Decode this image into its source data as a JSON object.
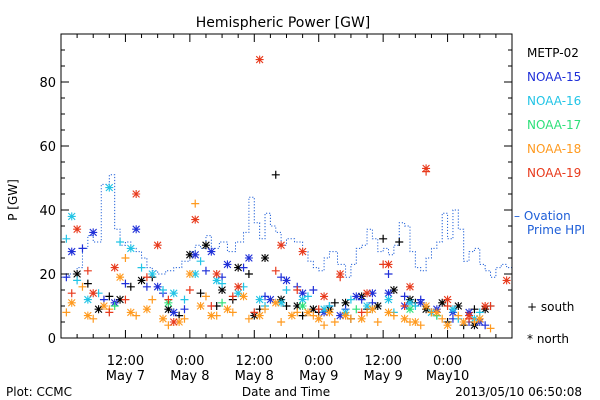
{
  "chart_data": {
    "type": "scatter",
    "title": "Hemispheric Power [GW]",
    "ylabel": "P [GW]",
    "xlabel": "Date and Time",
    "ylim": [
      0,
      95
    ],
    "yticks": [
      0,
      20,
      40,
      60,
      80
    ],
    "xlim": [
      0,
      84
    ],
    "xticks": [
      {
        "x": 12,
        "top": "12:00",
        "bottom": "May 7"
      },
      {
        "x": 24,
        "top": "0:00",
        "bottom": "May 8"
      },
      {
        "x": 36,
        "top": "12:00",
        "bottom": "May 8"
      },
      {
        "x": 48,
        "top": "0:00",
        "bottom": "May 9"
      },
      {
        "x": 60,
        "top": "12:00",
        "bottom": "May 9"
      },
      {
        "x": 72,
        "top": "0:00",
        "bottom": "May10"
      }
    ],
    "legend": {
      "satellites": [
        {
          "name": "METP-02",
          "color": "#000000"
        },
        {
          "name": "NOAA-15",
          "color": "#1f2fd8"
        },
        {
          "name": "NOAA-16",
          "color": "#22c4e6"
        },
        {
          "name": "NOAA-17",
          "color": "#2ee07a"
        },
        {
          "name": "NOAA-18",
          "color": "#ff9a1f"
        },
        {
          "name": "NOAA-19",
          "color": "#e83a1c"
        }
      ],
      "ovation_label_1": "– Ovation",
      "ovation_label_2": "Prime HPI",
      "south_label": "+ south",
      "north_label": "* north"
    },
    "ovation": {
      "color": "#1f5fd8",
      "x": [
        0,
        1.5,
        3,
        4,
        5,
        6,
        7.5,
        9,
        10,
        11,
        12,
        13,
        14,
        15,
        16,
        17,
        18,
        19.5,
        21,
        22.5,
        24,
        25,
        26,
        27,
        28,
        29.5,
        31,
        32.5,
        34,
        35,
        36,
        37,
        38,
        39,
        40,
        41,
        42,
        43.5,
        45,
        46,
        47,
        48,
        49,
        50,
        51.5,
        53,
        54,
        55,
        56,
        57,
        58,
        59,
        60,
        61,
        62,
        63,
        64,
        65,
        66,
        67,
        68,
        69,
        70,
        71,
        72,
        73,
        74,
        75,
        76,
        77,
        78,
        79,
        80,
        81,
        82,
        83,
        84
      ],
      "y": [
        19,
        20,
        22,
        28,
        32,
        30,
        48,
        51,
        34,
        29,
        30,
        28,
        27,
        25,
        22,
        21,
        20,
        21,
        22,
        24,
        27,
        29,
        28,
        32,
        28,
        30,
        27,
        30,
        33,
        44,
        36,
        31,
        39,
        35,
        33,
        29,
        31,
        30,
        27,
        24,
        22,
        21,
        25,
        27,
        23,
        19,
        23,
        28,
        29,
        34,
        31,
        27,
        28,
        26,
        29,
        36,
        35,
        27,
        22,
        21,
        25,
        28,
        30,
        39,
        31,
        40,
        34,
        24,
        27,
        28,
        23,
        21,
        19,
        22,
        23,
        22,
        30
      ]
    },
    "series": [
      {
        "name": "METP-02",
        "color": "#000000",
        "south": [
          [
            5,
            17
          ],
          [
            9,
            13
          ],
          [
            13,
            16
          ],
          [
            17,
            19
          ],
          [
            22,
            7
          ],
          [
            26,
            14
          ],
          [
            29,
            10
          ],
          [
            32,
            12
          ],
          [
            35,
            20
          ],
          [
            37,
            9
          ],
          [
            40,
            51
          ],
          [
            42,
            10
          ],
          [
            45,
            7
          ],
          [
            48,
            8
          ],
          [
            51,
            11
          ],
          [
            54,
            6
          ],
          [
            57,
            9
          ],
          [
            60,
            31
          ],
          [
            63,
            30
          ],
          [
            66,
            11
          ],
          [
            69,
            8
          ],
          [
            72,
            5
          ],
          [
            75,
            4
          ],
          [
            77,
            9
          ]
        ],
        "north": [
          [
            3,
            20
          ],
          [
            7,
            9
          ],
          [
            11,
            12
          ],
          [
            15,
            18
          ],
          [
            20,
            9
          ],
          [
            24,
            26
          ],
          [
            27,
            29
          ],
          [
            30,
            15
          ],
          [
            33,
            22
          ],
          [
            36,
            7
          ],
          [
            38,
            25
          ],
          [
            41,
            12
          ],
          [
            44,
            10
          ],
          [
            47,
            9
          ],
          [
            50,
            9
          ],
          [
            53,
            11
          ],
          [
            56,
            13
          ],
          [
            59,
            10
          ],
          [
            62,
            15
          ],
          [
            65,
            12
          ],
          [
            68,
            9
          ],
          [
            71,
            11
          ],
          [
            74,
            10
          ],
          [
            77,
            4
          ],
          [
            79,
            9
          ]
        ]
      },
      {
        "name": "NOAA-15",
        "color": "#1f2fd8",
        "south": [
          [
            1,
            19
          ],
          [
            4,
            28
          ],
          [
            8,
            12
          ],
          [
            12,
            17
          ],
          [
            16,
            16
          ],
          [
            19,
            14
          ],
          [
            23,
            9
          ],
          [
            27,
            21
          ],
          [
            30,
            19
          ],
          [
            34,
            22
          ],
          [
            38,
            13
          ],
          [
            41,
            19
          ],
          [
            44,
            16
          ],
          [
            47,
            15
          ],
          [
            50,
            10
          ],
          [
            53,
            9
          ],
          [
            56,
            12
          ],
          [
            58,
            11
          ],
          [
            61,
            20
          ],
          [
            64,
            13
          ],
          [
            67,
            12
          ],
          [
            70,
            8
          ],
          [
            73,
            6
          ],
          [
            76,
            5
          ],
          [
            79,
            4
          ]
        ],
        "north": [
          [
            2,
            27
          ],
          [
            6,
            33
          ],
          [
            10,
            11
          ],
          [
            14,
            34
          ],
          [
            18,
            16
          ],
          [
            21,
            8
          ],
          [
            25,
            26
          ],
          [
            28,
            27
          ],
          [
            31,
            23
          ],
          [
            35,
            25
          ],
          [
            39,
            12
          ],
          [
            42,
            18
          ],
          [
            45,
            14
          ],
          [
            49,
            8
          ],
          [
            52,
            7
          ],
          [
            55,
            13
          ],
          [
            58,
            14
          ],
          [
            61,
            14
          ],
          [
            64,
            10
          ],
          [
            67,
            11
          ],
          [
            70,
            9
          ],
          [
            73,
            8
          ],
          [
            76,
            8
          ],
          [
            78,
            5
          ]
        ]
      },
      {
        "name": "NOAA-16",
        "color": "#22c4e6",
        "south": [
          [
            1,
            31
          ],
          [
            3,
            18
          ],
          [
            7,
            14
          ],
          [
            11,
            30
          ],
          [
            15,
            22
          ],
          [
            19,
            15
          ],
          [
            23,
            12
          ],
          [
            26,
            24
          ],
          [
            30,
            17
          ],
          [
            34,
            16
          ],
          [
            38,
            10
          ],
          [
            42,
            15
          ],
          [
            46,
            13
          ],
          [
            50,
            10
          ],
          [
            54,
            12
          ],
          [
            58,
            9
          ],
          [
            62,
            8
          ],
          [
            66,
            10
          ],
          [
            70,
            7
          ],
          [
            74,
            6
          ],
          [
            78,
            8
          ],
          [
            80,
            10
          ]
        ],
        "north": [
          [
            2,
            38
          ],
          [
            5,
            12
          ],
          [
            9,
            47
          ],
          [
            13,
            28
          ],
          [
            17,
            20
          ],
          [
            21,
            14
          ],
          [
            25,
            20
          ],
          [
            29,
            18
          ],
          [
            33,
            14
          ],
          [
            37,
            12
          ],
          [
            41,
            11
          ],
          [
            45,
            12
          ],
          [
            49,
            9
          ],
          [
            53,
            8
          ],
          [
            57,
            10
          ],
          [
            61,
            12
          ],
          [
            65,
            11
          ],
          [
            69,
            8
          ],
          [
            73,
            9
          ],
          [
            77,
            6
          ]
        ]
      },
      {
        "name": "NOAA-17",
        "color": "#2ee07a",
        "south": [
          [
            10,
            10
          ],
          [
            30,
            11
          ],
          [
            55,
            9
          ],
          [
            70,
            7
          ]
        ],
        "north": [
          [
            20,
            11
          ],
          [
            45,
            10
          ],
          [
            65,
            9
          ]
        ]
      },
      {
        "name": "NOAA-18",
        "color": "#ff9a1f",
        "south": [
          [
            1,
            8
          ],
          [
            4,
            16
          ],
          [
            6,
            6
          ],
          [
            9,
            9
          ],
          [
            12,
            25
          ],
          [
            14,
            7
          ],
          [
            17,
            12
          ],
          [
            20,
            4
          ],
          [
            23,
            6
          ],
          [
            25,
            42
          ],
          [
            27,
            13
          ],
          [
            29,
            7
          ],
          [
            32,
            8
          ],
          [
            35,
            6
          ],
          [
            38,
            9
          ],
          [
            41,
            5
          ],
          [
            44,
            8
          ],
          [
            47,
            7
          ],
          [
            49,
            4
          ],
          [
            51,
            5
          ],
          [
            54,
            6
          ],
          [
            57,
            8
          ],
          [
            59,
            5
          ],
          [
            62,
            7
          ],
          [
            65,
            5
          ],
          [
            67,
            4
          ],
          [
            69,
            8
          ],
          [
            71,
            6
          ],
          [
            74,
            7
          ],
          [
            77,
            5
          ],
          [
            80,
            3
          ]
        ],
        "north": [
          [
            2,
            11
          ],
          [
            5,
            7
          ],
          [
            8,
            10
          ],
          [
            11,
            19
          ],
          [
            13,
            8
          ],
          [
            16,
            9
          ],
          [
            19,
            6
          ],
          [
            22,
            5
          ],
          [
            24,
            20
          ],
          [
            26,
            10
          ],
          [
            28,
            7
          ],
          [
            31,
            9
          ],
          [
            34,
            13
          ],
          [
            37,
            7
          ],
          [
            40,
            11
          ],
          [
            43,
            7
          ],
          [
            46,
            8
          ],
          [
            48,
            6
          ],
          [
            50,
            8
          ],
          [
            53,
            7
          ],
          [
            56,
            6
          ],
          [
            58,
            9
          ],
          [
            61,
            8
          ],
          [
            64,
            6
          ],
          [
            66,
            5
          ],
          [
            68,
            10
          ],
          [
            70,
            8
          ],
          [
            72,
            4
          ],
          [
            75,
            5
          ],
          [
            78,
            6
          ]
        ]
      },
      {
        "name": "NOAA-19",
        "color": "#e83a1c",
        "south": [
          [
            2,
            14
          ],
          [
            5,
            21
          ],
          [
            9,
            8
          ],
          [
            12,
            12
          ],
          [
            16,
            19
          ],
          [
            20,
            12
          ],
          [
            24,
            15
          ],
          [
            28,
            10
          ],
          [
            32,
            13
          ],
          [
            36,
            8
          ],
          [
            40,
            21
          ],
          [
            44,
            15
          ],
          [
            48,
            9
          ],
          [
            52,
            19
          ],
          [
            56,
            8
          ],
          [
            60,
            23
          ],
          [
            64,
            10
          ],
          [
            68,
            52
          ],
          [
            72,
            10
          ],
          [
            76,
            6
          ],
          [
            80,
            10
          ]
        ],
        "north": [
          [
            3,
            34
          ],
          [
            6,
            14
          ],
          [
            10,
            22
          ],
          [
            14,
            45
          ],
          [
            18,
            29
          ],
          [
            21,
            5
          ],
          [
            25,
            37
          ],
          [
            29,
            20
          ],
          [
            33,
            16
          ],
          [
            37,
            87
          ],
          [
            41,
            29
          ],
          [
            45,
            27
          ],
          [
            49,
            13
          ],
          [
            52,
            20
          ],
          [
            57,
            14
          ],
          [
            61,
            23
          ],
          [
            65,
            16
          ],
          [
            68,
            53
          ],
          [
            72,
            12
          ],
          [
            76,
            7
          ],
          [
            79,
            10
          ],
          [
            83,
            18
          ]
        ]
      }
    ]
  },
  "footer": {
    "left": "Plot: CCMC",
    "center": "Date and Time",
    "right": "2013/05/10 06:50:08"
  }
}
